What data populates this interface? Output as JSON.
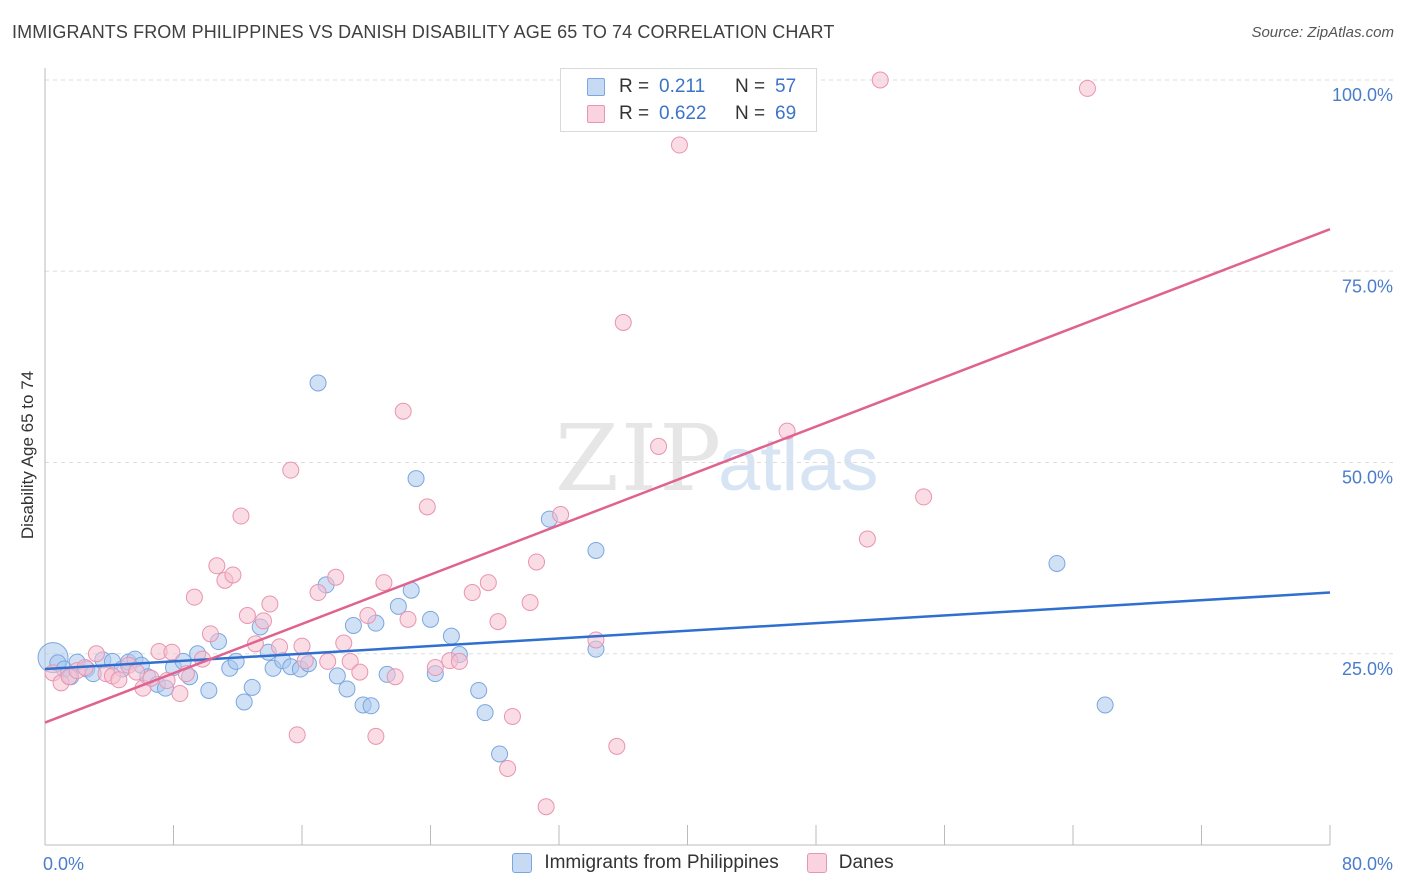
{
  "title": "IMMIGRANTS FROM PHILIPPINES VS DANISH DISABILITY AGE 65 TO 74 CORRELATION CHART",
  "source": "Source: ZipAtlas.com",
  "watermark": {
    "zip": "ZIP",
    "atlas": "atlas"
  },
  "legend": {
    "rows": [
      {
        "r_label": "R =",
        "r_value": "0.211",
        "n_label": "N =",
        "n_value": "57"
      },
      {
        "r_label": "R =",
        "r_value": "0.622",
        "n_label": "N =",
        "n_value": "69"
      }
    ]
  },
  "colors": {
    "blue_fill": "#a9c8ef",
    "blue_stroke": "#7ba7de",
    "blue_line": "#2f6fcf",
    "pink_fill": "#f5bfd0",
    "pink_stroke": "#e994b0",
    "pink_line": "#e0628f",
    "axis_text": "#4a7ccc",
    "grid": "#dddddd"
  },
  "chart_data": {
    "type": "scatter",
    "title": "IMMIGRANTS FROM PHILIPPINES VS DANISH DISABILITY AGE 65 TO 74 CORRELATION CHART",
    "xlabel": "",
    "ylabel": "Disability Age 65 to 74",
    "xlim": [
      0,
      80
    ],
    "ylim": [
      0,
      105
    ],
    "x_tick_labels": [
      "0.0%",
      "80.0%"
    ],
    "y_ticks": [
      25,
      50,
      75,
      100
    ],
    "y_tick_labels": [
      "25.0%",
      "50.0%",
      "75.0%",
      "100.0%"
    ],
    "grid": true,
    "legend_position": "top-center",
    "series": [
      {
        "name": "Immigrants from Philippines",
        "color": "#a9c8ef",
        "r": 0.211,
        "n": 57,
        "trend": {
          "x": [
            0,
            80
          ],
          "y": [
            23.0,
            33.0
          ]
        },
        "points": [
          [
            0.5,
            24.5
          ],
          [
            0.8,
            23.8
          ],
          [
            1.2,
            23.0
          ],
          [
            1.6,
            22.0
          ],
          [
            2.0,
            23.9
          ],
          [
            2.6,
            23.0
          ],
          [
            3.0,
            22.4
          ],
          [
            3.6,
            24.2
          ],
          [
            4.2,
            24.0
          ],
          [
            4.8,
            23.0
          ],
          [
            5.2,
            23.9
          ],
          [
            5.6,
            24.3
          ],
          [
            6.0,
            23.5
          ],
          [
            6.4,
            22.0
          ],
          [
            7.0,
            21.0
          ],
          [
            7.5,
            20.5
          ],
          [
            8.0,
            23.2
          ],
          [
            8.6,
            24.0
          ],
          [
            9.0,
            22.0
          ],
          [
            9.5,
            25.0
          ],
          [
            10.2,
            20.2
          ],
          [
            10.8,
            26.6
          ],
          [
            11.5,
            23.1
          ],
          [
            11.9,
            24.0
          ],
          [
            12.4,
            18.7
          ],
          [
            12.9,
            20.6
          ],
          [
            13.4,
            28.5
          ],
          [
            13.9,
            25.2
          ],
          [
            14.2,
            23.1
          ],
          [
            14.8,
            24.1
          ],
          [
            15.3,
            23.3
          ],
          [
            15.9,
            23.0
          ],
          [
            16.4,
            23.7
          ],
          [
            17.0,
            60.4
          ],
          [
            17.5,
            34.0
          ],
          [
            18.2,
            22.1
          ],
          [
            18.8,
            20.4
          ],
          [
            19.2,
            28.7
          ],
          [
            19.8,
            18.3
          ],
          [
            20.3,
            18.2
          ],
          [
            20.6,
            29.0
          ],
          [
            21.3,
            22.3
          ],
          [
            22.0,
            31.2
          ],
          [
            22.8,
            33.3
          ],
          [
            23.1,
            47.9
          ],
          [
            24.0,
            29.5
          ],
          [
            24.3,
            22.4
          ],
          [
            25.3,
            27.3
          ],
          [
            25.8,
            24.9
          ],
          [
            27.0,
            20.2
          ],
          [
            27.4,
            17.3
          ],
          [
            28.3,
            11.9
          ],
          [
            31.4,
            42.6
          ],
          [
            34.3,
            38.5
          ],
          [
            34.3,
            25.6
          ],
          [
            63.0,
            36.8
          ],
          [
            66.0,
            18.3
          ]
        ]
      },
      {
        "name": "Danes",
        "color": "#f5bfd0",
        "r": 0.622,
        "n": 69,
        "trend": {
          "x": [
            0,
            80
          ],
          "y": [
            16.0,
            80.5
          ]
        },
        "points": [
          [
            0.5,
            22.5
          ],
          [
            1.0,
            21.2
          ],
          [
            1.5,
            22.0
          ],
          [
            2.0,
            22.8
          ],
          [
            2.5,
            23.2
          ],
          [
            3.2,
            25.0
          ],
          [
            3.8,
            22.4
          ],
          [
            4.2,
            22.1
          ],
          [
            4.6,
            21.6
          ],
          [
            5.2,
            23.5
          ],
          [
            5.7,
            22.6
          ],
          [
            6.1,
            20.5
          ],
          [
            6.6,
            21.8
          ],
          [
            7.1,
            25.3
          ],
          [
            7.6,
            21.5
          ],
          [
            7.9,
            25.2
          ],
          [
            8.4,
            19.8
          ],
          [
            8.8,
            22.4
          ],
          [
            9.3,
            32.4
          ],
          [
            9.8,
            24.3
          ],
          [
            10.3,
            27.6
          ],
          [
            10.7,
            36.5
          ],
          [
            11.2,
            34.6
          ],
          [
            11.7,
            35.3
          ],
          [
            12.2,
            43.0
          ],
          [
            12.6,
            30.0
          ],
          [
            13.1,
            26.3
          ],
          [
            13.6,
            29.3
          ],
          [
            14.0,
            31.5
          ],
          [
            14.6,
            25.9
          ],
          [
            15.3,
            49.0
          ],
          [
            15.7,
            14.4
          ],
          [
            16.2,
            24.1
          ],
          [
            17.0,
            33.0
          ],
          [
            17.6,
            24.0
          ],
          [
            18.1,
            35.0
          ],
          [
            18.6,
            26.4
          ],
          [
            19.0,
            24.0
          ],
          [
            19.6,
            22.6
          ],
          [
            20.1,
            30.0
          ],
          [
            20.6,
            14.2
          ],
          [
            21.1,
            34.3
          ],
          [
            21.8,
            22.0
          ],
          [
            22.3,
            56.7
          ],
          [
            22.6,
            29.5
          ],
          [
            23.8,
            44.2
          ],
          [
            24.3,
            23.2
          ],
          [
            25.2,
            24.1
          ],
          [
            25.8,
            24.0
          ],
          [
            26.6,
            33.0
          ],
          [
            27.6,
            34.3
          ],
          [
            28.2,
            29.2
          ],
          [
            28.8,
            10.0
          ],
          [
            29.1,
            16.8
          ],
          [
            30.2,
            31.7
          ],
          [
            30.6,
            37.0
          ],
          [
            32.1,
            43.2
          ],
          [
            31.2,
            5.0
          ],
          [
            34.3,
            26.8
          ],
          [
            35.6,
            12.9
          ],
          [
            36.0,
            68.3
          ],
          [
            38.2,
            52.1
          ],
          [
            39.5,
            91.5
          ],
          [
            46.2,
            54.1
          ],
          [
            51.2,
            40.0
          ],
          [
            52.0,
            100.0
          ],
          [
            54.7,
            45.5
          ],
          [
            64.9,
            98.9
          ],
          [
            16.0,
            26.0
          ]
        ]
      }
    ]
  },
  "bottom_legend": [
    {
      "label": "Immigrants from Philippines"
    },
    {
      "label": "Danes"
    }
  ]
}
